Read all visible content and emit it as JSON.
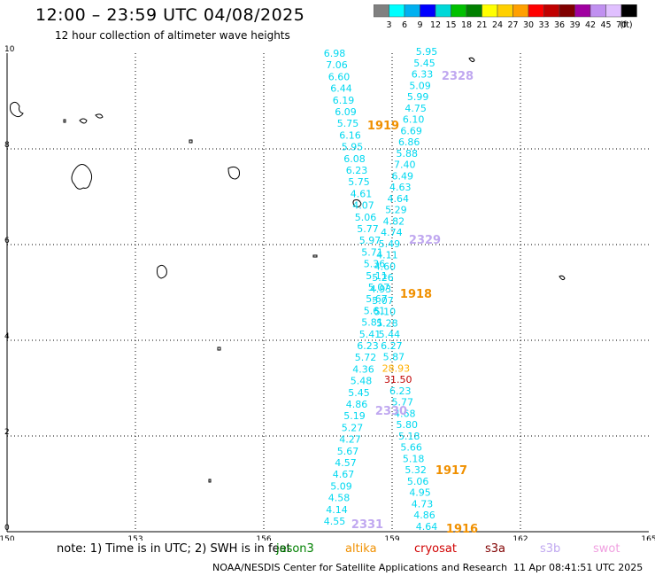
{
  "title": "12:00 – 23:59 UTC 04/08/2025",
  "subtitle": "12 hour collection of altimeter wave heights",
  "legend": {
    "unit": "(ft)",
    "colors": [
      "#808080",
      "#00ffff",
      "#00b0f0",
      "#0000ff",
      "#00d8d8",
      "#00c000",
      "#008000",
      "#ffff00",
      "#ffd000",
      "#ffa000",
      "#ff0000",
      "#c00000",
      "#800000",
      "#a000a0",
      "#c090f0",
      "#e0c0ff",
      "#000000"
    ],
    "labels": [
      "3",
      "6",
      "9",
      "12",
      "15",
      "18",
      "21",
      "24",
      "27",
      "30",
      "33",
      "36",
      "39",
      "42",
      "45",
      "70"
    ]
  },
  "axes": {
    "x_ticks": [
      "150",
      "153",
      "156",
      "159",
      "162",
      "165"
    ],
    "y_ticks": [
      "0",
      "2",
      "4",
      "6",
      "8",
      "10"
    ]
  },
  "track_values": [
    {
      "text": "6.98",
      "color": "#00d8f0"
    },
    {
      "text": "7.06",
      "color": "#00d8f0"
    },
    {
      "text": "6.60",
      "color": "#00d8f0"
    },
    {
      "text": "6.44",
      "color": "#00d8f0"
    },
    {
      "text": "6.19",
      "color": "#00d8f0"
    },
    {
      "text": "6.09",
      "color": "#00d8f0"
    },
    {
      "text": "5.75",
      "color": "#00d8f0"
    },
    {
      "text": "6.16",
      "color": "#00d8f0"
    },
    {
      "text": "5.95",
      "color": "#00d8f0"
    },
    {
      "text": "6.08",
      "color": "#00d8f0"
    },
    {
      "text": "6.23",
      "color": "#00d8f0"
    },
    {
      "text": "5.75",
      "color": "#00d8f0"
    },
    {
      "text": "4.61",
      "color": "#00d8f0"
    },
    {
      "text": "4.07",
      "color": "#00d8f0"
    },
    {
      "text": "5.06",
      "color": "#00d8f0"
    },
    {
      "text": "5.77",
      "color": "#00d8f0"
    },
    {
      "text": "5.97",
      "color": "#00d8f0"
    },
    {
      "text": "5.71",
      "color": "#00d8f0"
    },
    {
      "text": "5.36",
      "color": "#00d8f0"
    },
    {
      "text": "5.11",
      "color": "#00d8f0"
    },
    {
      "text": "5.07",
      "color": "#00d8f0"
    },
    {
      "text": "5.67",
      "color": "#00d8f0"
    },
    {
      "text": "5.61",
      "color": "#00d8f0"
    },
    {
      "text": "5.81",
      "color": "#00d8f0"
    },
    {
      "text": "5.41",
      "color": "#00d8f0"
    },
    {
      "text": "6.23",
      "color": "#00d8f0"
    },
    {
      "text": "5.72",
      "color": "#00d8f0"
    },
    {
      "text": "4.36",
      "color": "#00d8f0"
    },
    {
      "text": "5.48",
      "color": "#00d8f0"
    },
    {
      "text": "5.45",
      "color": "#00d8f0"
    },
    {
      "text": "4.86",
      "color": "#00d8f0"
    },
    {
      "text": "5.19",
      "color": "#00d8f0"
    },
    {
      "text": "5.27",
      "color": "#00d8f0"
    },
    {
      "text": "4.27",
      "color": "#00d8f0"
    },
    {
      "text": "5.67",
      "color": "#00d8f0"
    },
    {
      "text": "4.57",
      "color": "#00d8f0"
    },
    {
      "text": "4.67",
      "color": "#00d8f0"
    },
    {
      "text": "5.09",
      "color": "#00d8f0"
    },
    {
      "text": "4.58",
      "color": "#00d8f0"
    },
    {
      "text": "4.14",
      "color": "#00d8f0"
    },
    {
      "text": "4.55",
      "color": "#00d8f0"
    },
    {
      "text": "5.95",
      "color": "#00d8f0"
    },
    {
      "text": "5.45",
      "color": "#00d8f0"
    },
    {
      "text": "6.33",
      "color": "#00d8f0"
    },
    {
      "text": "5.09",
      "color": "#00d8f0"
    },
    {
      "text": "5.99",
      "color": "#00d8f0"
    },
    {
      "text": "4.75",
      "color": "#00d8f0"
    },
    {
      "text": "6.10",
      "color": "#00d8f0"
    },
    {
      "text": "6.69",
      "color": "#00d8f0"
    },
    {
      "text": "6.86",
      "color": "#00d8f0"
    },
    {
      "text": "5.88",
      "color": "#00d8f0"
    },
    {
      "text": "7.40",
      "color": "#00d8f0"
    },
    {
      "text": "6.49",
      "color": "#00d8f0"
    },
    {
      "text": "4.63",
      "color": "#00d8f0"
    },
    {
      "text": "4.64",
      "color": "#00d8f0"
    },
    {
      "text": "5.29",
      "color": "#00d8f0"
    },
    {
      "text": "4.82",
      "color": "#00d8f0"
    },
    {
      "text": "4.74",
      "color": "#00d8f0"
    },
    {
      "text": "5.49",
      "color": "#00d8f0"
    },
    {
      "text": "4.11",
      "color": "#00d8f0"
    },
    {
      "text": "4.60",
      "color": "#00d8f0"
    },
    {
      "text": "5.26",
      "color": "#00d8f0"
    },
    {
      "text": "4.93",
      "color": "#00d8f0"
    },
    {
      "text": "5.07",
      "color": "#00d8f0"
    },
    {
      "text": "5.10",
      "color": "#00d8f0"
    },
    {
      "text": "5.28",
      "color": "#00d8f0"
    },
    {
      "text": "5.44",
      "color": "#00d8f0"
    },
    {
      "text": "6.27",
      "color": "#00d8f0"
    },
    {
      "text": "5.87",
      "color": "#00d8f0"
    },
    {
      "text": "28.93",
      "color": "#ffb000"
    },
    {
      "text": "31.50",
      "color": "#c00000"
    },
    {
      "text": "6.23",
      "color": "#00d8f0"
    },
    {
      "text": "5.77",
      "color": "#00d8f0"
    },
    {
      "text": "4.68",
      "color": "#00d8f0"
    },
    {
      "text": "5.80",
      "color": "#00d8f0"
    },
    {
      "text": "5.18",
      "color": "#00d8f0"
    },
    {
      "text": "5.66",
      "color": "#00d8f0"
    },
    {
      "text": "5.18",
      "color": "#00d8f0"
    },
    {
      "text": "5.32",
      "color": "#00d8f0"
    },
    {
      "text": "5.06",
      "color": "#00d8f0"
    },
    {
      "text": "4.95",
      "color": "#00d8f0"
    },
    {
      "text": "4.73",
      "color": "#00d8f0"
    },
    {
      "text": "4.86",
      "color": "#00d8f0"
    },
    {
      "text": "4.64",
      "color": "#00d8f0"
    }
  ],
  "pass_labels": [
    {
      "text": "2328",
      "color": "#c0a8f0"
    },
    {
      "text": "1919",
      "color": "#f09000"
    },
    {
      "text": "2329",
      "color": "#c0a8f0"
    },
    {
      "text": "1918",
      "color": "#f09000"
    },
    {
      "text": "2330",
      "color": "#c0a8f0"
    },
    {
      "text": "1917",
      "color": "#f09000"
    },
    {
      "text": "2331",
      "color": "#c0a8f0"
    },
    {
      "text": "1916",
      "color": "#f09000"
    }
  ],
  "footer": {
    "note": "note:  1) Time is in UTC;  2) SWH is in feet",
    "satellites": [
      {
        "name": "jason3",
        "color": "#008000"
      },
      {
        "name": "altika",
        "color": "#f09000"
      },
      {
        "name": "cryosat",
        "color": "#d00000"
      },
      {
        "name": "s3a",
        "color": "#800000"
      },
      {
        "name": "s3b",
        "color": "#c0a8f0"
      },
      {
        "name": "swot",
        "color": "#f0a0e0"
      }
    ],
    "credit": "NOAA/NESDIS Center for Satellite Applications and Research",
    "timestamp": "11 Apr 08:41:51 UTC 2025"
  }
}
